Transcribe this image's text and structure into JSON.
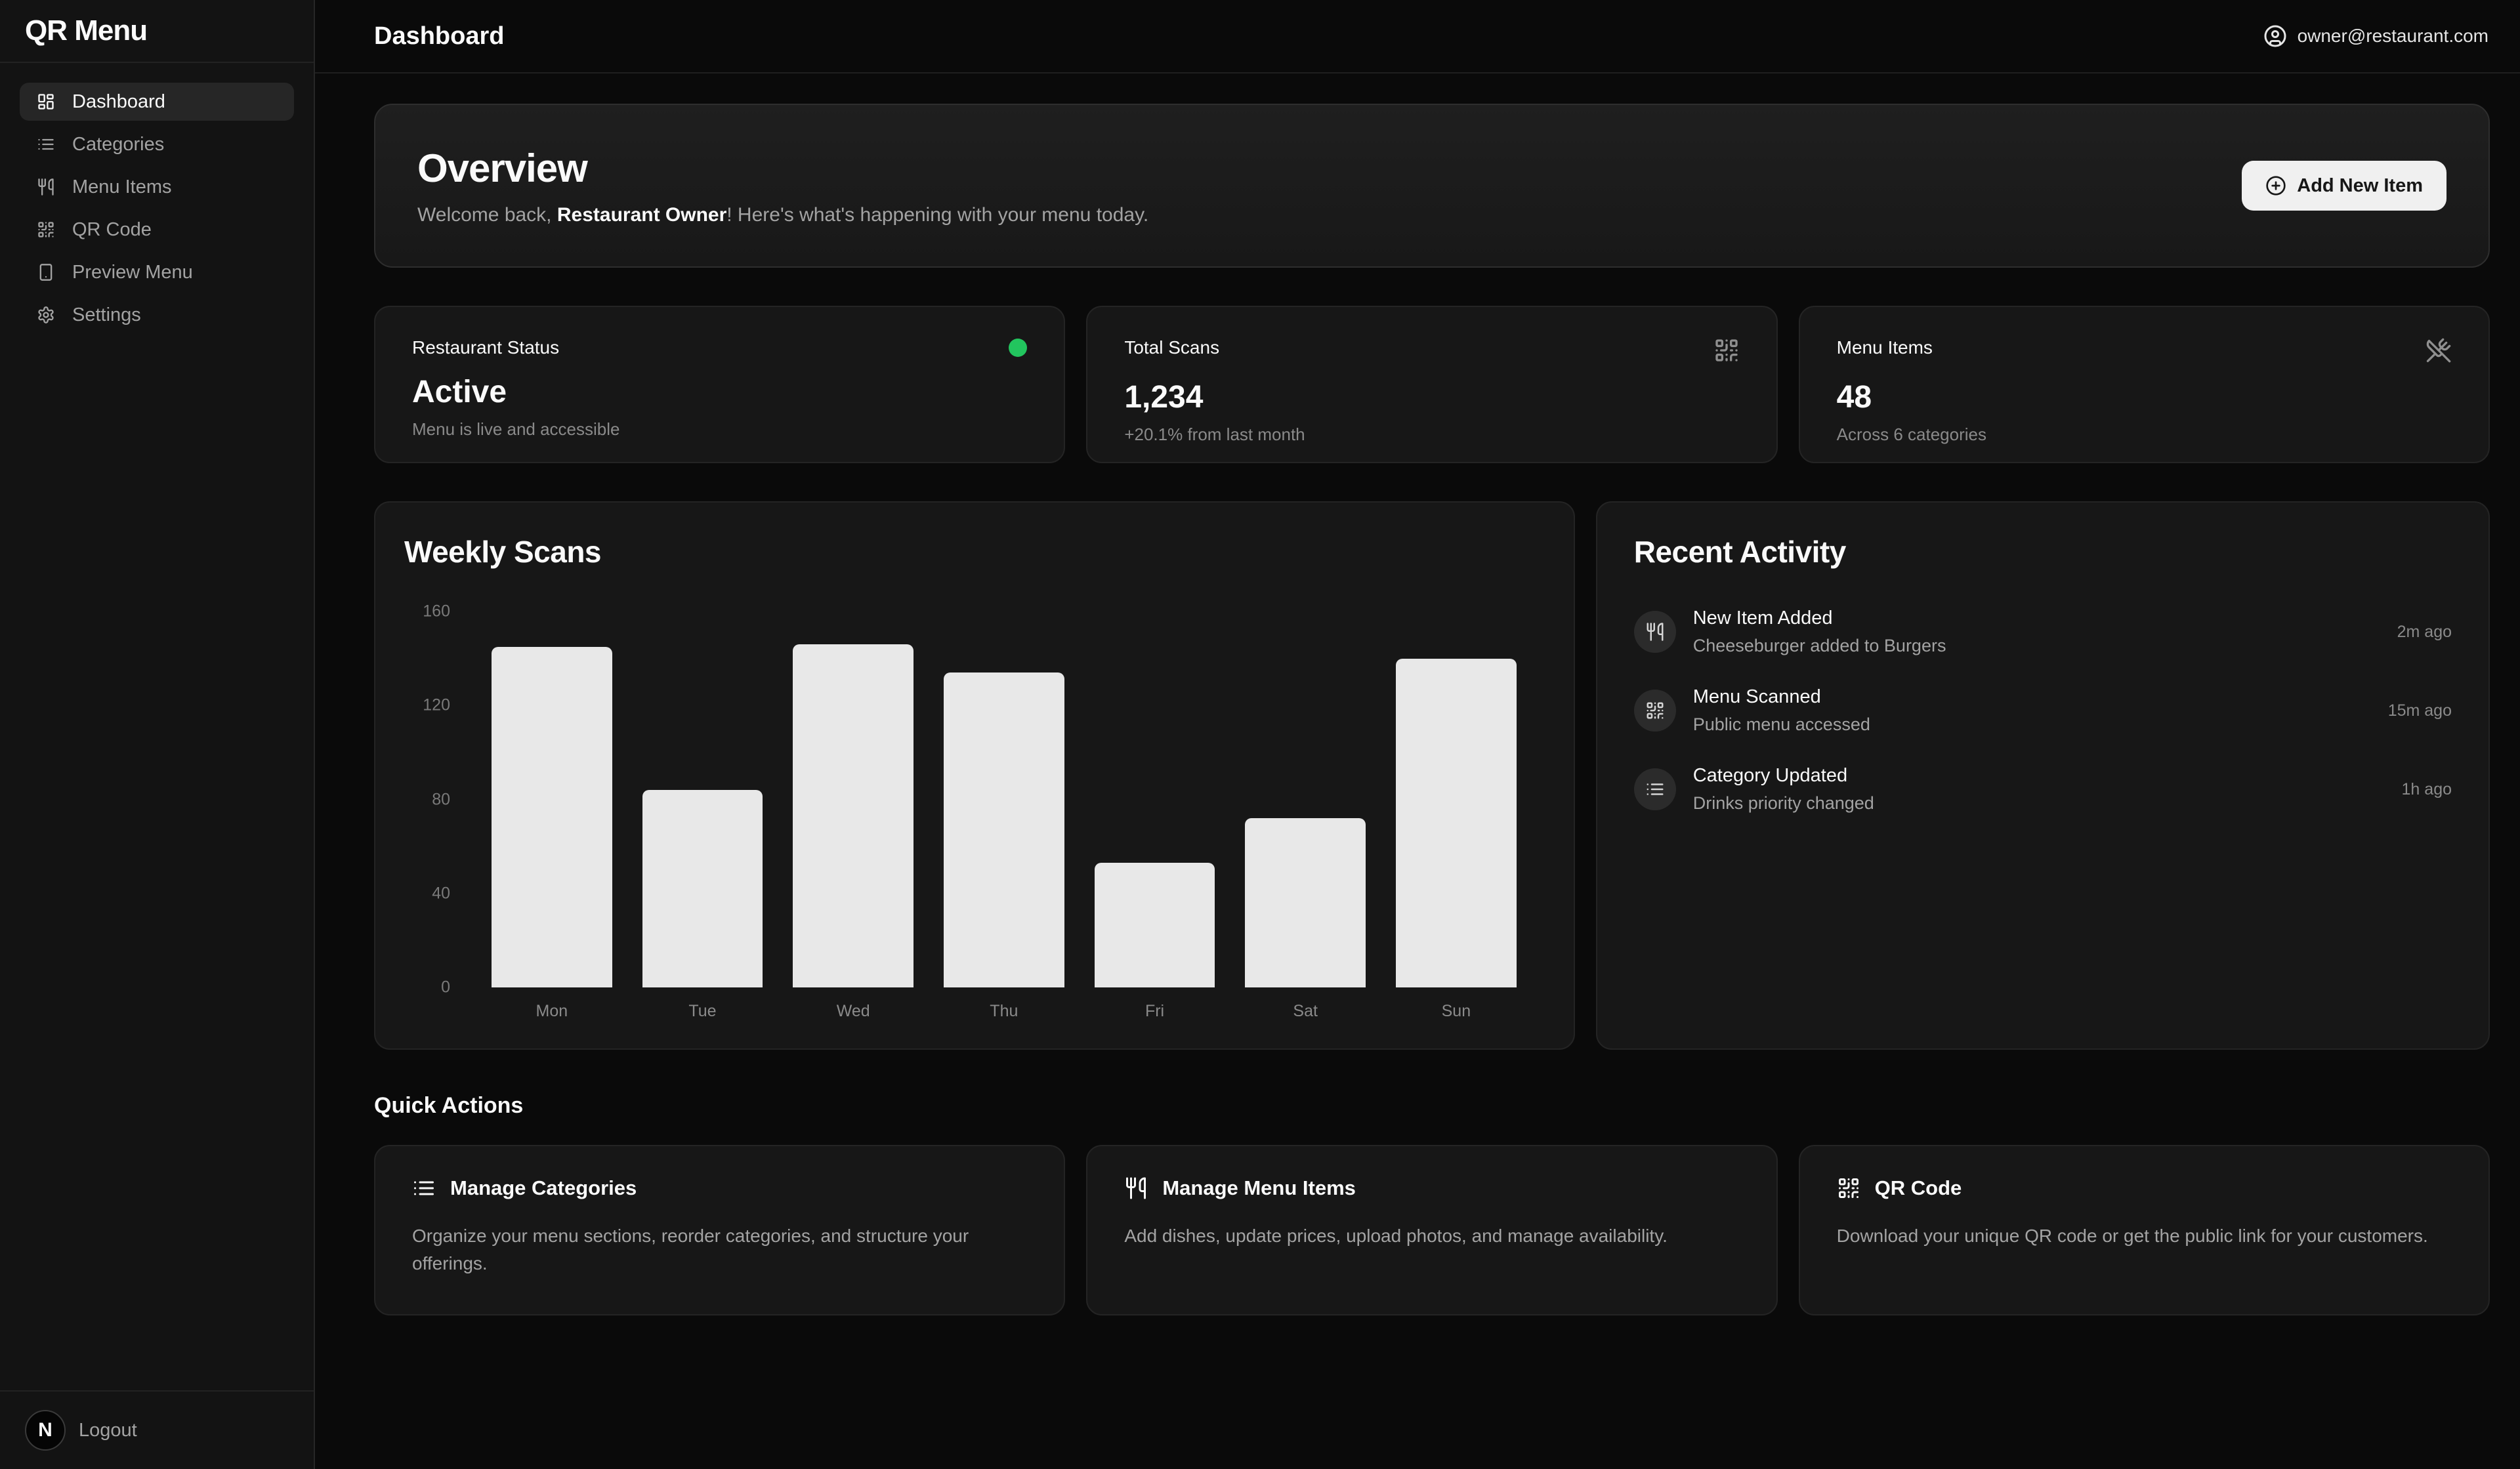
{
  "app": {
    "title": "QR Menu"
  },
  "topbar": {
    "title": "Dashboard",
    "user_email": "owner@restaurant.com"
  },
  "sidebar": {
    "items": [
      {
        "label": "Dashboard",
        "icon": "layout-dashboard",
        "active": true
      },
      {
        "label": "Categories",
        "icon": "list",
        "active": false
      },
      {
        "label": "Menu Items",
        "icon": "utensils",
        "active": false
      },
      {
        "label": "QR Code",
        "icon": "qr-code",
        "active": false
      },
      {
        "label": "Preview Menu",
        "icon": "smartphone",
        "active": false
      },
      {
        "label": "Settings",
        "icon": "settings",
        "active": false
      }
    ],
    "avatar_letter": "N",
    "logout_label": "Logout"
  },
  "overview": {
    "title": "Overview",
    "welcome_prefix": "Welcome back, ",
    "welcome_name": "Restaurant Owner",
    "welcome_suffix": "! Here's what's happening with your menu today.",
    "add_button_label": "Add New Item"
  },
  "stats": [
    {
      "label": "Restaurant Status",
      "value": "Active",
      "subtitle": "Menu is live and accessible",
      "indicator": "green-dot",
      "indicator_color": "#22c55e"
    },
    {
      "label": "Total Scans",
      "value": "1,234",
      "subtitle": "+20.1% from last month",
      "icon": "qr-code"
    },
    {
      "label": "Menu Items",
      "value": "48",
      "subtitle": "Across 6 categories",
      "icon": "utensils-crossed"
    }
  ],
  "chart_data": {
    "type": "bar",
    "title": "Weekly Scans",
    "categories": [
      "Mon",
      "Tue",
      "Wed",
      "Thu",
      "Fri",
      "Sat",
      "Sun"
    ],
    "values": [
      145,
      84,
      146,
      134,
      53,
      72,
      140
    ],
    "xlabel": "",
    "ylabel": "",
    "ylim": [
      0,
      160
    ],
    "yticks": [
      0,
      40,
      80,
      120,
      160
    ],
    "grid": false,
    "legend": false,
    "bar_color": "#e8e8e8"
  },
  "recent_activity": {
    "title": "Recent Activity",
    "items": [
      {
        "icon": "utensils",
        "title": "New Item Added",
        "subtitle": "Cheeseburger added to Burgers",
        "time": "2m ago"
      },
      {
        "icon": "qr-code",
        "title": "Menu Scanned",
        "subtitle": "Public menu accessed",
        "time": "15m ago"
      },
      {
        "icon": "list",
        "title": "Category Updated",
        "subtitle": "Drinks priority changed",
        "time": "1h ago"
      }
    ]
  },
  "quick_actions": {
    "title": "Quick Actions",
    "cards": [
      {
        "icon": "list",
        "title": "Manage Categories",
        "description": "Organize your menu sections, reorder categories, and structure your offerings."
      },
      {
        "icon": "utensils",
        "title": "Manage Menu Items",
        "description": "Add dishes, update prices, upload photos, and manage availability."
      },
      {
        "icon": "qr-code",
        "title": "QR Code",
        "description": "Download your unique QR code or get the public link for your customers."
      }
    ]
  },
  "colors": {
    "background": "#0a0a0a",
    "sidebar": "#131313",
    "card": "#171717",
    "border": "#262626",
    "status_green": "#22c55e",
    "bar": "#e8e8e8",
    "muted_text": "#a3a3a3"
  }
}
